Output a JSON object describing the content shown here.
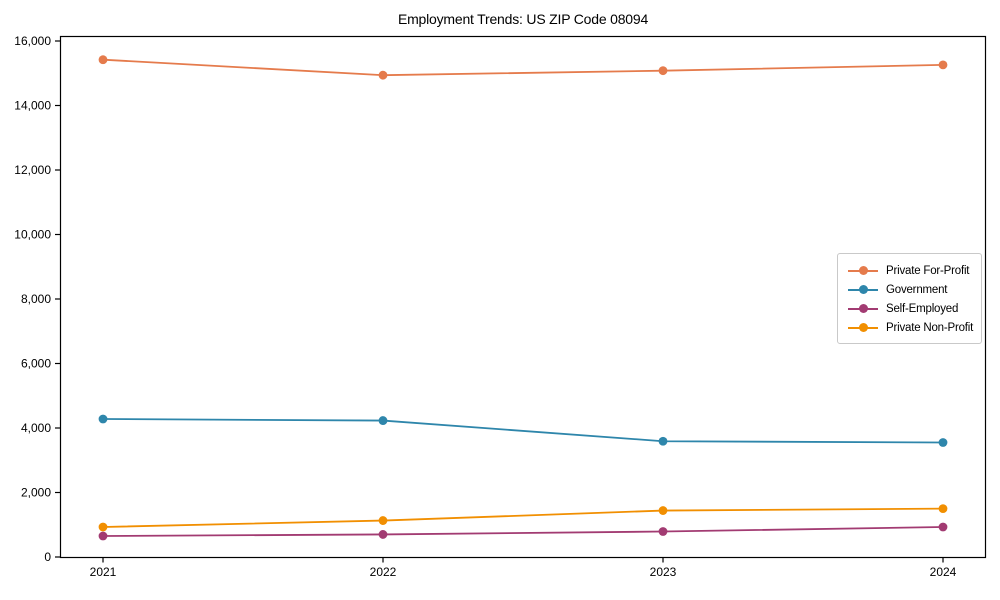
{
  "window": {
    "background_color": "#ffffff",
    "axis_color": "#000000",
    "text_color": "#000000",
    "legend_border_color": "#c9c9c9"
  },
  "chart_data": {
    "type": "line",
    "title": "Employment Trends: US ZIP Code 08094",
    "xlabel": "",
    "ylabel": "",
    "grid": false,
    "legend_position": "center-right",
    "categories": [
      "2021",
      "2022",
      "2023",
      "2024"
    ],
    "series": [
      {
        "name": "Private For-Profit",
        "color": "#E57B4C",
        "values": [
          15420,
          14940,
          15080,
          15260
        ]
      },
      {
        "name": "Government",
        "color": "#2E86AB",
        "values": [
          4280,
          4230,
          3590,
          3550
        ]
      },
      {
        "name": "Self-Employed",
        "color": "#A23B72",
        "values": [
          650,
          700,
          790,
          930
        ]
      },
      {
        "name": "Private Non-Profit",
        "color": "#F18F01",
        "values": [
          930,
          1130,
          1440,
          1500
        ]
      }
    ],
    "ylim": [
      0,
      16000
    ],
    "yticks": {
      "values": [
        0,
        2000,
        4000,
        6000,
        8000,
        10000,
        12000,
        14000,
        16000
      ],
      "labels": [
        "0",
        "2,000",
        "4,000",
        "6,000",
        "8,000",
        "10,000",
        "12,000",
        "14,000",
        "16,000"
      ]
    },
    "marker": "circle",
    "line_width": 1.8,
    "marker_radius": 4.4
  }
}
